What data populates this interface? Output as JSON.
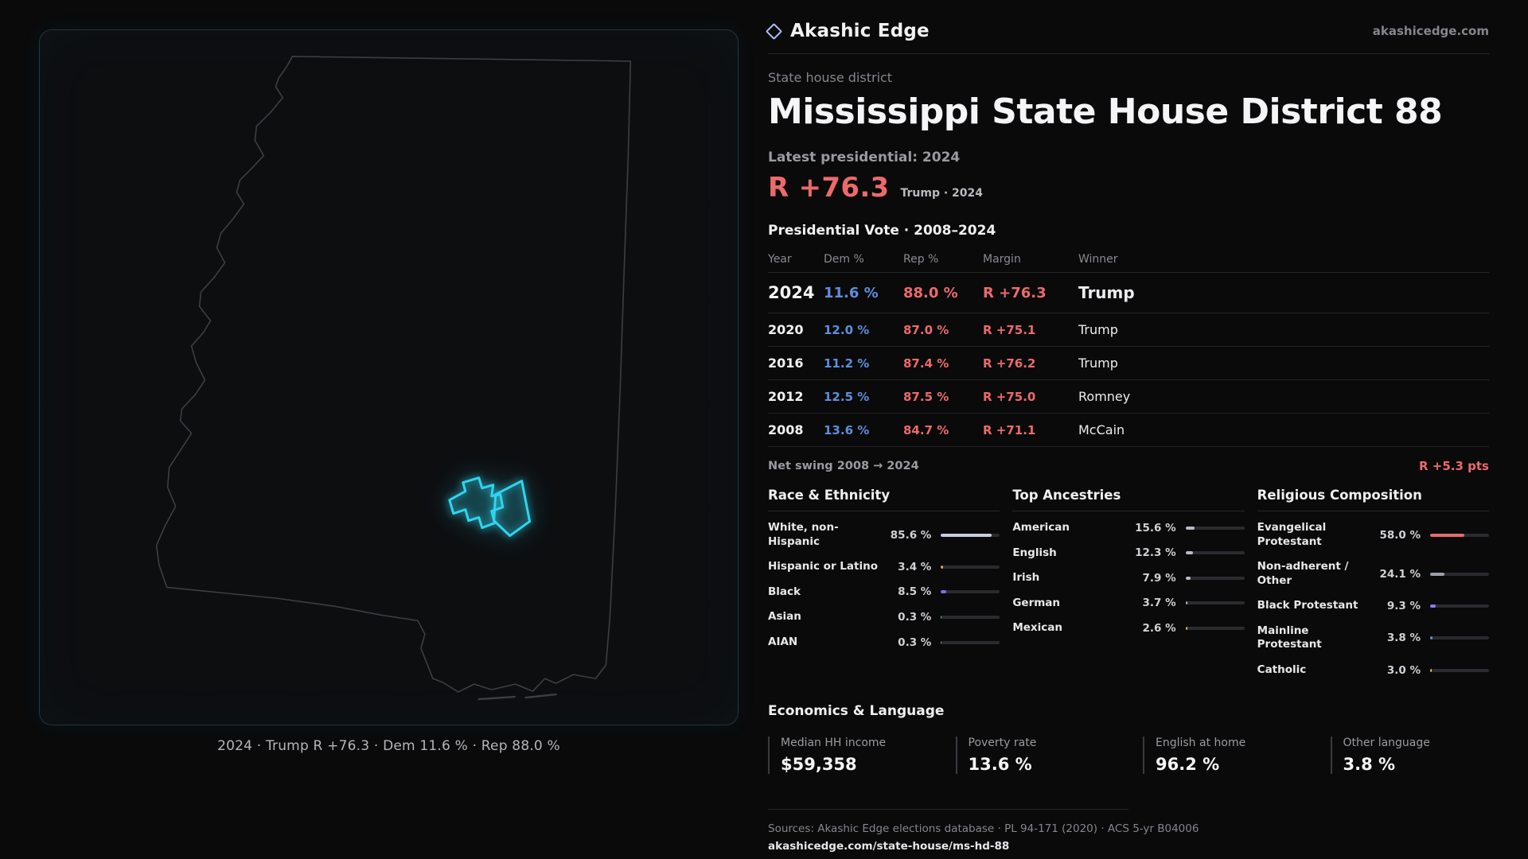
{
  "brand": {
    "name": "Akashic Edge",
    "domain": "akashicedge.com"
  },
  "header": {
    "kicker": "State house district",
    "title": "Mississippi State House District 88"
  },
  "latest": {
    "label": "Latest presidential: 2024",
    "margin": "R +76.3",
    "note": "Trump · 2024"
  },
  "vote_table": {
    "title": "Presidential Vote · 2008–2024",
    "columns": [
      "Year",
      "Dem %",
      "Rep %",
      "Margin",
      "Winner"
    ],
    "rows": [
      {
        "year": "2024",
        "dem": "11.6 %",
        "rep": "88.0 %",
        "margin": "R +76.3",
        "winner": "Trump",
        "emphasis": true
      },
      {
        "year": "2020",
        "dem": "12.0 %",
        "rep": "87.0 %",
        "margin": "R +75.1",
        "winner": "Trump",
        "emphasis": false
      },
      {
        "year": "2016",
        "dem": "11.2 %",
        "rep": "87.4 %",
        "margin": "R +76.2",
        "winner": "Trump",
        "emphasis": false
      },
      {
        "year": "2012",
        "dem": "12.5 %",
        "rep": "87.5 %",
        "margin": "R +75.0",
        "winner": "Romney",
        "emphasis": false
      },
      {
        "year": "2008",
        "dem": "13.6 %",
        "rep": "84.7 %",
        "margin": "R +71.1",
        "winner": "McCain",
        "emphasis": false
      }
    ],
    "net_swing_label": "Net swing 2008 → 2024",
    "net_swing_value": "R +5.3 pts"
  },
  "demographics": [
    {
      "title": "Race & Ethnicity",
      "rows": [
        {
          "label": "White, non-Hispanic",
          "value": "85.6 %",
          "pct": 85.6,
          "color": "#c8cde0"
        },
        {
          "label": "Hispanic or Latino",
          "value": "3.4 %",
          "pct": 3.4,
          "color": "#e5a23c"
        },
        {
          "label": "Black",
          "value": "8.5 %",
          "pct": 8.5,
          "color": "#7b6cf0"
        },
        {
          "label": "Asian",
          "value": "0.3 %",
          "pct": 0.3,
          "color": "#5bc8d4"
        },
        {
          "label": "AIAN",
          "value": "0.3 %",
          "pct": 0.3,
          "color": "#c97b4a"
        }
      ]
    },
    {
      "title": "Top Ancestries",
      "rows": [
        {
          "label": "American",
          "value": "15.6 %",
          "pct": 15.6,
          "color": "#b8bcc8"
        },
        {
          "label": "English",
          "value": "12.3 %",
          "pct": 12.3,
          "color": "#b8bcc8"
        },
        {
          "label": "Irish",
          "value": "7.9 %",
          "pct": 7.9,
          "color": "#b8bcc8"
        },
        {
          "label": "German",
          "value": "3.7 %",
          "pct": 3.7,
          "color": "#b8bcc8"
        },
        {
          "label": "Mexican",
          "value": "2.6 %",
          "pct": 2.6,
          "color": "#e0c050"
        }
      ]
    },
    {
      "title": "Religious Composition",
      "rows": [
        {
          "label": "Evangelical Protestant",
          "value": "58.0 %",
          "pct": 58.0,
          "color": "#e66a6a"
        },
        {
          "label": "Non-adherent / Other",
          "value": "24.1 %",
          "pct": 24.1,
          "color": "#9ca0ab"
        },
        {
          "label": "Black Protestant",
          "value": "9.3 %",
          "pct": 9.3,
          "color": "#8b7cf5"
        },
        {
          "label": "Mainline Protestant",
          "value": "3.8 %",
          "pct": 3.8,
          "color": "#5c8fdb"
        },
        {
          "label": "Catholic",
          "value": "3.0 %",
          "pct": 3.0,
          "color": "#e3c35a"
        }
      ]
    }
  ],
  "economics": {
    "title": "Economics & Language",
    "stats": [
      {
        "label": "Median HH income",
        "value": "$59,358"
      },
      {
        "label": "Poverty rate",
        "value": "13.6 %"
      },
      {
        "label": "English at home",
        "value": "96.2 %"
      },
      {
        "label": "Other language",
        "value": "3.8 %"
      }
    ]
  },
  "map": {
    "caption": "2024 · Trump R +76.3 · Dem 11.6 % · Rep 88.0 %"
  },
  "footer": {
    "sources": "Sources: Akashic Edge elections database · PL 94-171 (2020) · ACS 5-yr B04006",
    "link": "akashicedge.com/state-house/ms-hd-88"
  },
  "colors": {
    "accent_red": "#ec6a6a",
    "accent_blue": "#5c8fdb",
    "district_cyan": "#2fd5ee",
    "logo_blue": "#a9bdf5"
  }
}
